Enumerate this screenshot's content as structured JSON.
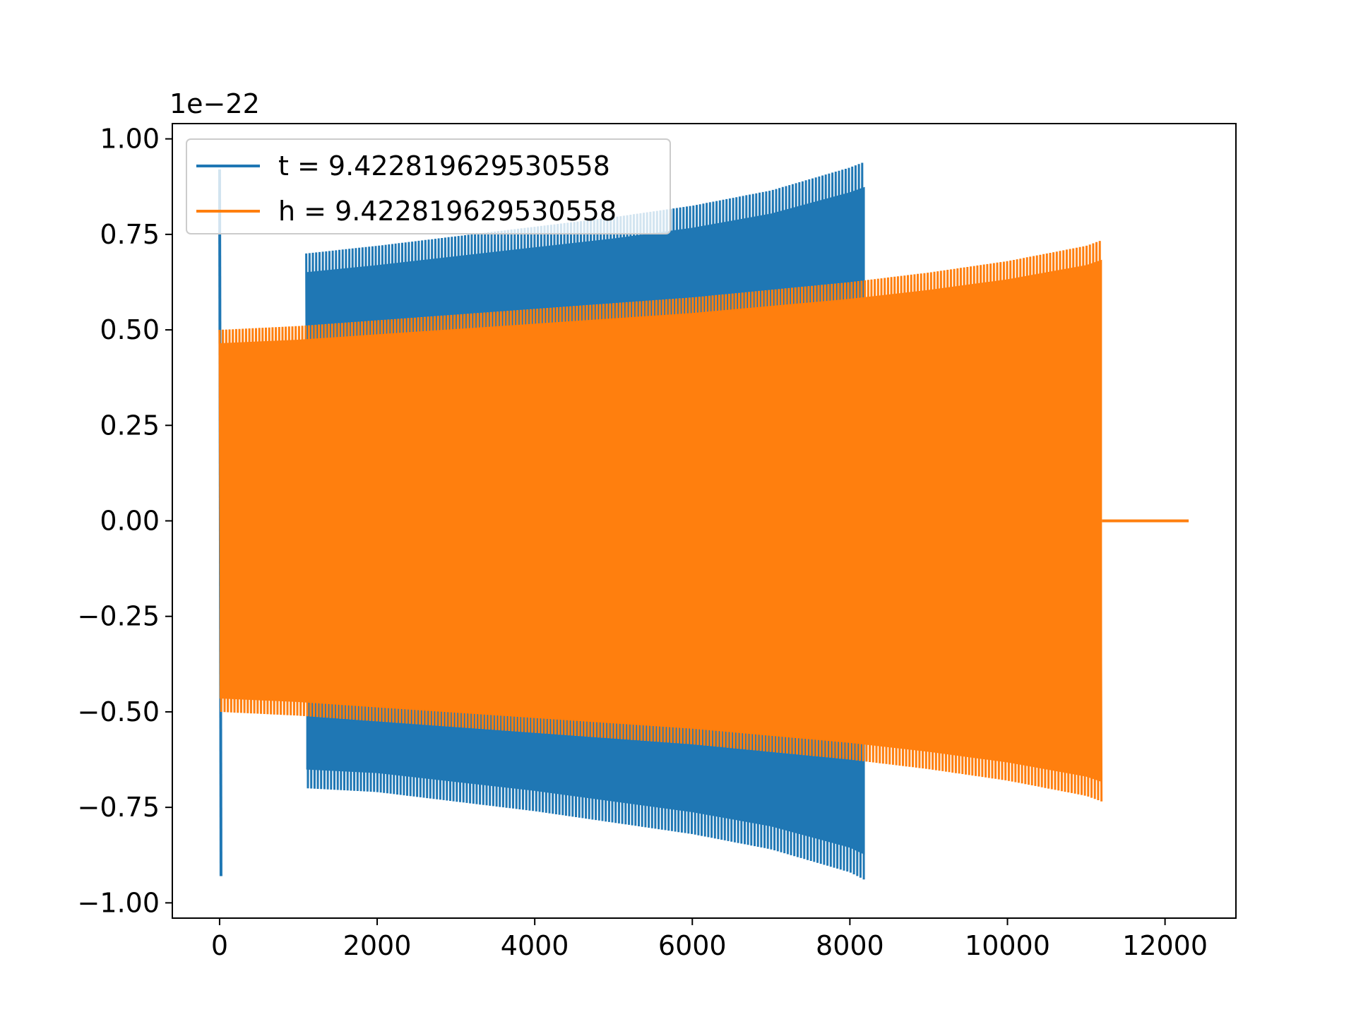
{
  "chart_data": {
    "type": "line",
    "title": "",
    "xlabel": "",
    "ylabel": "",
    "y_offset_label": "1e−22",
    "xlim": [
      -600,
      12900
    ],
    "ylim": [
      -1.04,
      1.04
    ],
    "x_ticks": [
      0,
      2000,
      4000,
      6000,
      8000,
      10000,
      12000
    ],
    "x_tick_labels": [
      "0",
      "2000",
      "4000",
      "6000",
      "8000",
      "10000",
      "12000"
    ],
    "y_ticks": [
      1.0,
      0.75,
      0.5,
      0.25,
      0.0,
      -0.25,
      -0.5,
      -0.75,
      -1.0
    ],
    "y_tick_labels": [
      "1.00",
      "0.75",
      "0.50",
      "0.25",
      "0.00",
      "−0.25",
      "−0.50",
      "−0.75",
      "−1.00"
    ],
    "grid": false,
    "legend_position": "upper-left",
    "series": [
      {
        "name": "t = 9.422819629530558",
        "color": "#1f77b4",
        "spike": {
          "x": 0,
          "values": [
            0.92,
            -0.93
          ]
        },
        "envelope": {
          "x": [
            1100,
            2000,
            3000,
            4000,
            5000,
            6000,
            7000,
            8000,
            8190
          ],
          "upper": [
            0.7,
            0.72,
            0.745,
            0.77,
            0.795,
            0.825,
            0.865,
            0.925,
            0.94
          ],
          "lower": [
            -0.7,
            -0.71,
            -0.735,
            -0.76,
            -0.79,
            -0.82,
            -0.86,
            -0.92,
            -0.94
          ]
        }
      },
      {
        "name": "h = 9.422819629530558",
        "color": "#ff7f0e",
        "envelope": {
          "x": [
            0,
            1000,
            2000,
            3000,
            4000,
            5000,
            6000,
            7000,
            8000,
            9000,
            10000,
            11000,
            11200
          ],
          "upper": [
            0.5,
            0.51,
            0.525,
            0.54,
            0.555,
            0.57,
            0.585,
            0.605,
            0.625,
            0.65,
            0.68,
            0.72,
            0.735
          ],
          "lower": [
            -0.5,
            -0.51,
            -0.525,
            -0.54,
            -0.555,
            -0.57,
            -0.585,
            -0.605,
            -0.625,
            -0.65,
            -0.68,
            -0.72,
            -0.735
          ]
        },
        "flat_tail": {
          "x": [
            11200,
            12300
          ],
          "value": 0.0
        }
      }
    ]
  }
}
